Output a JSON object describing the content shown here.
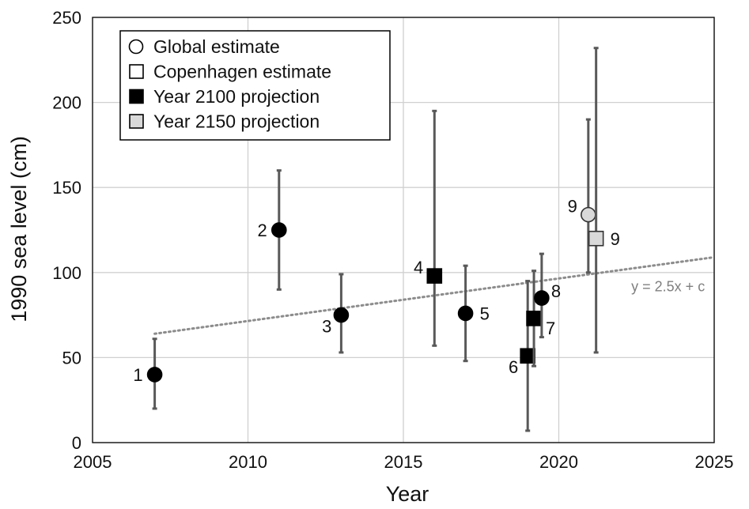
{
  "chart_data": {
    "type": "scatter",
    "xlabel": "Year",
    "ylabel": "1990 sea level (cm)",
    "xlim": [
      2005,
      2025
    ],
    "ylim": [
      0,
      250
    ],
    "x_ticks": [
      2005,
      2010,
      2015,
      2020,
      2025
    ],
    "y_ticks": [
      0,
      50,
      100,
      150,
      200,
      250
    ],
    "grid": true,
    "legend_position": "top-left",
    "legend": [
      {
        "name": "Global estimate",
        "marker": "circle-open"
      },
      {
        "name": "Copenhagen estimate",
        "marker": "square-open"
      },
      {
        "name": "Year 2100 projection",
        "marker": "square-black"
      },
      {
        "name": "Year 2150 projection",
        "marker": "square-gray"
      }
    ],
    "points": [
      {
        "label": "1",
        "x": 2007.0,
        "y": 40,
        "low": 20,
        "high": 61,
        "marker": "circle-black",
        "label_side": "left"
      },
      {
        "label": "2",
        "x": 2011.0,
        "y": 125,
        "low": 90,
        "high": 160,
        "marker": "circle-black",
        "label_side": "left"
      },
      {
        "label": "3",
        "x": 2013.0,
        "y": 75,
        "low": 53,
        "high": 99,
        "marker": "circle-black",
        "label_side": "left-below"
      },
      {
        "label": "4",
        "x": 2016.0,
        "y": 98,
        "low": 57,
        "high": 195,
        "marker": "square-black",
        "label_side": "left-above"
      },
      {
        "label": "5",
        "x": 2017.0,
        "y": 76,
        "low": 48,
        "high": 104,
        "marker": "circle-black",
        "label_side": "right"
      },
      {
        "label": "6",
        "x": 2019.0,
        "y": 51,
        "low": 7,
        "high": 95,
        "marker": "square-black",
        "label_side": "left-below"
      },
      {
        "label": "7",
        "x": 2019.2,
        "y": 73,
        "low": 45,
        "high": 101,
        "marker": "square-black",
        "label_side": "right-below"
      },
      {
        "label": "8",
        "x": 2019.45,
        "y": 85,
        "low": 62,
        "high": 111,
        "marker": "circle-black",
        "label_side": "right-above"
      },
      {
        "label": "9",
        "x": 2020.95,
        "y": 134,
        "low": 100,
        "high": 190,
        "marker": "circle-gray",
        "label_side": "left-above"
      },
      {
        "label": "9",
        "x": 2021.2,
        "y": 120,
        "low": 53,
        "high": 232,
        "marker": "square-gray",
        "label_side": "right"
      }
    ],
    "trendline": {
      "label": "y = 2.5x + c",
      "slope": 2.5,
      "x_start": 2007.0,
      "y_start": 64,
      "x_end": 2025.0,
      "y_end": 109
    }
  },
  "colors": {
    "axis": "#111111",
    "grid": "#d0d0d0",
    "errorbar": "#595959",
    "marker_black": "#000000",
    "marker_gray": "#d9d9d9",
    "trend": "#8c8c8c",
    "trend_text": "#7f7f7f"
  }
}
